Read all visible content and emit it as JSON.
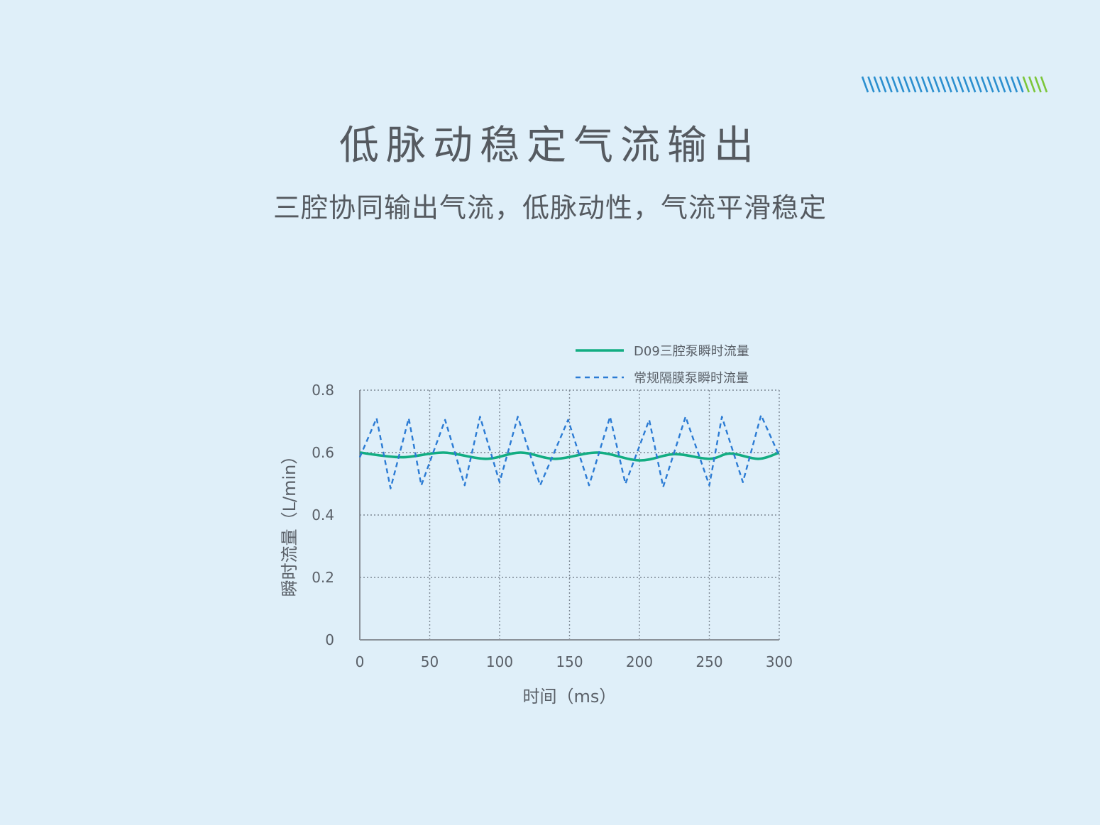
{
  "header": {
    "title": "低脉动稳定气流输出",
    "subtitle": "三腔协同输出气流，低脉动性，气流平滑稳定"
  },
  "colors": {
    "background": "#dfeff9",
    "text": "#555a60",
    "series_solid": "#13ad82",
    "series_dashed": "#2b7bd4",
    "grid": "#7d8894",
    "deco_blue": "#2b8fcf",
    "deco_green": "#7cc63a"
  },
  "chart_data": {
    "type": "line",
    "xlabel": "时间（ms）",
    "ylabel": "瞬时流量（L/min）",
    "xlim": [
      0,
      300
    ],
    "ylim": [
      0,
      0.8
    ],
    "xticks": [
      "0",
      "50",
      "100",
      "150",
      "200",
      "250",
      "300"
    ],
    "yticks": [
      "0",
      "0.2",
      "0.4",
      "0.6",
      "0.8"
    ],
    "grid": true,
    "legend_position": "top-right",
    "series": [
      {
        "name": "D09三腔泵瞬时流量",
        "style": "solid",
        "x": [
          0,
          30,
          60,
          90,
          115,
          140,
          170,
          200,
          225,
          250,
          265,
          285,
          300
        ],
        "y": [
          0.6,
          0.585,
          0.6,
          0.58,
          0.6,
          0.58,
          0.6,
          0.575,
          0.595,
          0.58,
          0.597,
          0.58,
          0.6
        ]
      },
      {
        "name": "常规隔膜泵瞬时流量",
        "style": "dashed",
        "x": [
          0,
          12,
          22,
          35,
          44,
          61,
          75,
          86,
          100,
          113,
          129,
          149,
          164,
          179,
          190,
          207,
          217,
          233,
          250,
          259,
          274,
          287,
          300
        ],
        "y": [
          0.585,
          0.71,
          0.485,
          0.71,
          0.495,
          0.705,
          0.495,
          0.715,
          0.505,
          0.715,
          0.495,
          0.705,
          0.495,
          0.715,
          0.5,
          0.705,
          0.49,
          0.715,
          0.495,
          0.715,
          0.505,
          0.72,
          0.59
        ]
      }
    ]
  }
}
